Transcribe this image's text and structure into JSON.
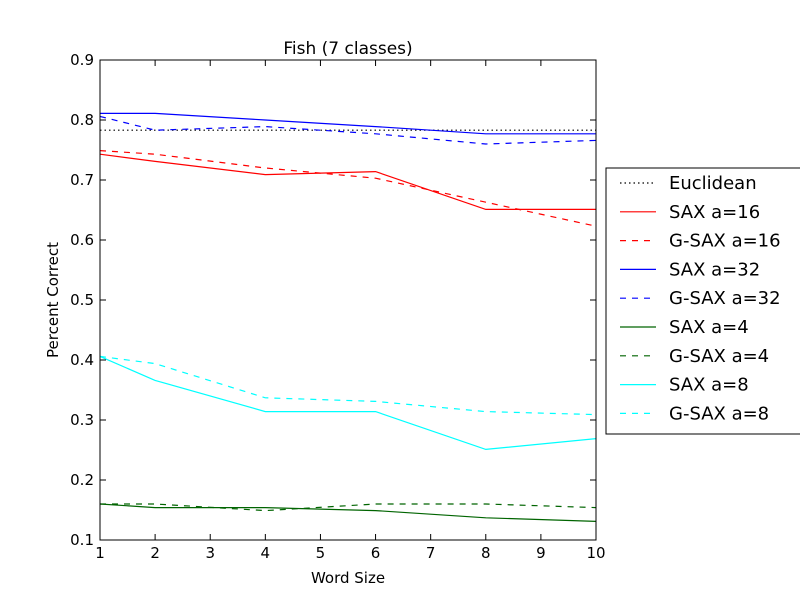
{
  "chart_data": {
    "type": "line",
    "title": "Fish (7 classes)",
    "xlabel": "Word Size",
    "ylabel": "Percent Correct",
    "xlim": [
      1,
      10
    ],
    "ylim": [
      0.1,
      0.9
    ],
    "x_ticks": [
      1,
      2,
      3,
      4,
      5,
      6,
      7,
      8,
      9,
      10
    ],
    "y_ticks": [
      0.1,
      0.2,
      0.3,
      0.4,
      0.5,
      0.6,
      0.7,
      0.8,
      0.9
    ],
    "y_tick_labels": [
      "0.1",
      "0.2",
      "0.3",
      "0.4",
      "0.5",
      "0.6",
      "0.7",
      "0.8",
      "0.9"
    ],
    "grid": false,
    "legend_position": "outside-right",
    "series": [
      {
        "name": "Euclidean",
        "color": "#000000",
        "style": "dotted",
        "x": [
          1,
          10
        ],
        "y": [
          0.783,
          0.783
        ]
      },
      {
        "name": "SAX a=16",
        "color": "#ff0000",
        "style": "solid",
        "x": [
          1,
          2,
          4,
          6,
          8,
          10
        ],
        "y": [
          0.743,
          0.731,
          0.709,
          0.714,
          0.651,
          0.651
        ]
      },
      {
        "name": "G-SAX a=16",
        "color": "#ff0000",
        "style": "dashed",
        "x": [
          1,
          2,
          4,
          6,
          8,
          10
        ],
        "y": [
          0.749,
          0.743,
          0.72,
          0.703,
          0.663,
          0.623
        ]
      },
      {
        "name": "SAX a=32",
        "color": "#0000ff",
        "style": "solid",
        "x": [
          1,
          2,
          4,
          6,
          8,
          10
        ],
        "y": [
          0.811,
          0.811,
          0.8,
          0.789,
          0.777,
          0.777
        ]
      },
      {
        "name": "G-SAX a=32",
        "color": "#0000ff",
        "style": "dashed",
        "x": [
          1,
          2,
          4,
          6,
          8,
          10
        ],
        "y": [
          0.806,
          0.783,
          0.789,
          0.777,
          0.76,
          0.766
        ]
      },
      {
        "name": "SAX a=4",
        "color": "#006400",
        "style": "solid",
        "x": [
          1,
          2,
          4,
          6,
          8,
          10
        ],
        "y": [
          0.16,
          0.154,
          0.154,
          0.149,
          0.137,
          0.131
        ]
      },
      {
        "name": "G-SAX a=4",
        "color": "#006400",
        "style": "dashed",
        "x": [
          1,
          2,
          4,
          6,
          8,
          10
        ],
        "y": [
          0.16,
          0.16,
          0.149,
          0.16,
          0.16,
          0.154
        ]
      },
      {
        "name": "SAX a=8",
        "color": "#00ffff",
        "style": "solid",
        "x": [
          1,
          2,
          4,
          6,
          8,
          10
        ],
        "y": [
          0.406,
          0.366,
          0.314,
          0.314,
          0.251,
          0.269
        ]
      },
      {
        "name": "G-SAX a=8",
        "color": "#00ffff",
        "style": "dashed",
        "x": [
          1,
          2,
          4,
          6,
          8,
          10
        ],
        "y": [
          0.406,
          0.394,
          0.337,
          0.331,
          0.314,
          0.309
        ]
      }
    ]
  }
}
